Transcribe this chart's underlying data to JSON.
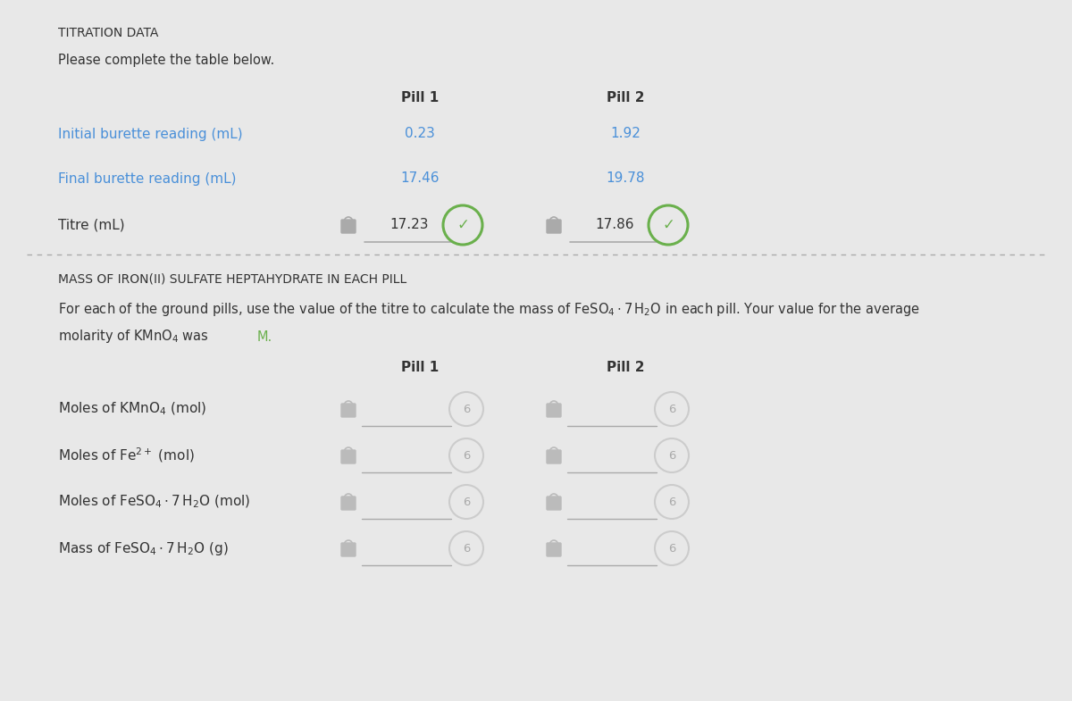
{
  "bg_color": "#e8e8e8",
  "title": "TITRATION DATA",
  "subtitle": "Please complete the table below.",
  "section2_title": "MASS OF IRON(II) SULFATE HEPTAHYDRATE IN EACH PILL",
  "blue_color": "#4a90d9",
  "green_color": "#6ab04c",
  "dark_text": "#333333",
  "lock_color": "#999999",
  "circle_color": "#cccccc",
  "line_color": "#aaaaaa",
  "title_fontsize": 10,
  "header_fontsize": 11,
  "row_fontsize": 11,
  "value_fontsize": 11
}
